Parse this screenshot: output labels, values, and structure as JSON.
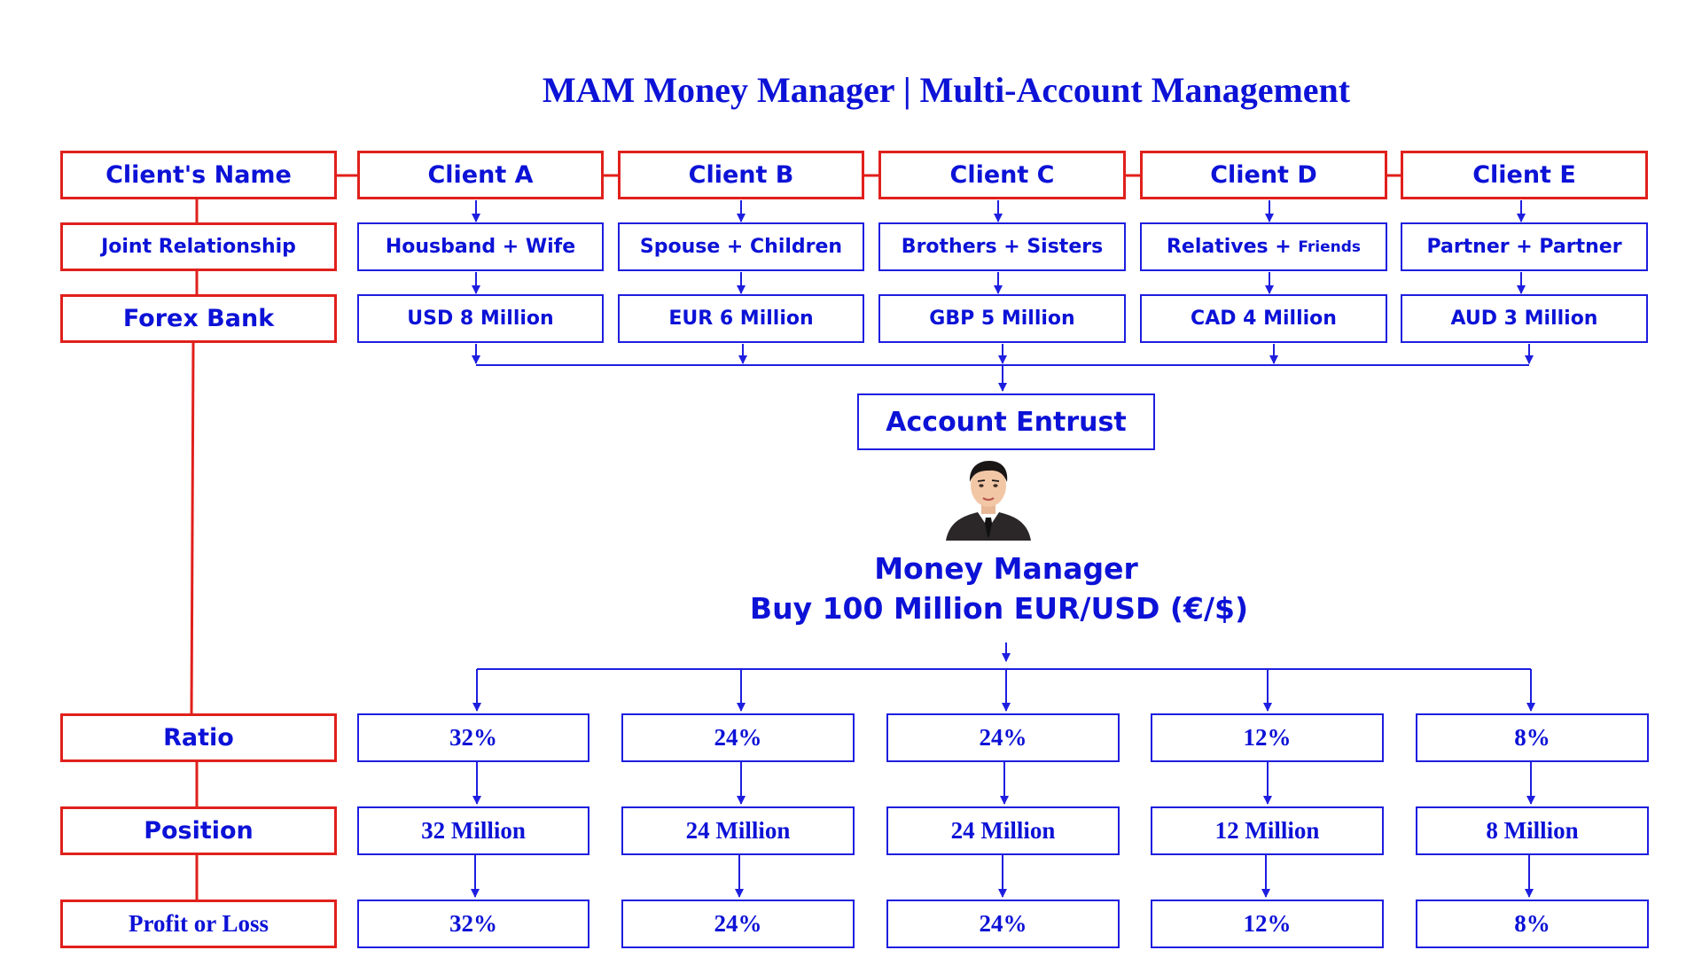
{
  "title": "MAM Money Manager | Multi-Account Management",
  "row_labels": {
    "clients_name": "Client's Name",
    "joint_relationship": "Joint Relationship",
    "forex_bank": "Forex Bank",
    "ratio": "Ratio",
    "position": "Position",
    "profit_or_loss": "Profit or Loss"
  },
  "clients": [
    {
      "name": "Client A",
      "relationship": "Housband + Wife",
      "bank": "USD 8 Million"
    },
    {
      "name": "Client B",
      "relationship": "Spouse + Children",
      "bank": "EUR 6 Million"
    },
    {
      "name": "Client C",
      "relationship": "Brothers + Sisters",
      "bank": "GBP 5 Million"
    },
    {
      "name": "Client D",
      "relationship": "Relatives + ",
      "relationship_small": "Friends",
      "bank": "CAD 4 Million"
    },
    {
      "name": "Client E",
      "relationship": "Partner + Partner",
      "bank": "AUD 3 Million"
    }
  ],
  "account_entrust": "Account Entrust",
  "money_manager": {
    "title": "Money Manager",
    "action": "Buy 100 Million EUR/USD (€/$)"
  },
  "allocations": [
    {
      "ratio": "32%",
      "position": "32 Million",
      "pnl": "32%"
    },
    {
      "ratio": "24%",
      "position": "24 Million",
      "pnl": "24%"
    },
    {
      "ratio": "24%",
      "position": "24 Million",
      "pnl": "24%"
    },
    {
      "ratio": "12%",
      "position": "12 Million",
      "pnl": "12%"
    },
    {
      "ratio": "8%",
      "position": "8 Million",
      "pnl": "8%"
    }
  ],
  "colors": {
    "accent_blue": "#0c12d6",
    "line_blue": "#1e1ee0",
    "label_red": "#e0201c"
  }
}
